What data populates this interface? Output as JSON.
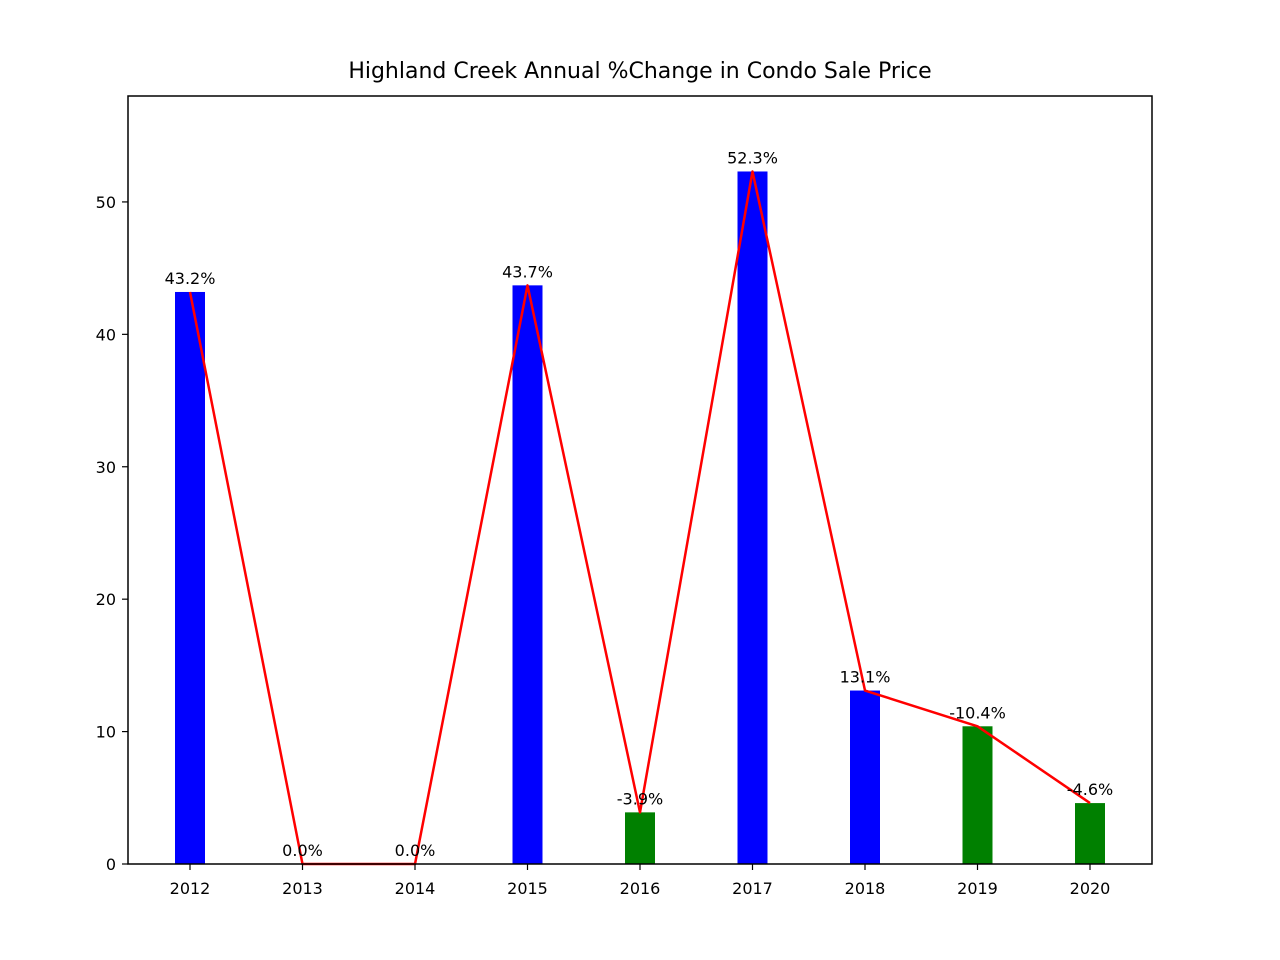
{
  "chart_data": {
    "type": "bar",
    "title": "Highland Creek Annual %Change in Condo Sale Price",
    "xlabel": "",
    "ylabel": "",
    "categories": [
      "2012",
      "2013",
      "2014",
      "2015",
      "2016",
      "2017",
      "2018",
      "2019",
      "2020"
    ],
    "values": [
      43.2,
      0.0,
      0.0,
      43.7,
      3.9,
      52.3,
      13.1,
      10.4,
      4.6
    ],
    "labels": [
      "43.2%",
      "0.0%",
      "0.0%",
      "43.7%",
      "-3.9%",
      "52.3%",
      "13.1%",
      "-10.4%",
      "-4.6%"
    ],
    "bar_colors": [
      "#0000ff",
      "#0000ff",
      "#0000ff",
      "#0000ff",
      "#008000",
      "#0000ff",
      "#0000ff",
      "#008000",
      "#008000"
    ],
    "line": {
      "values": [
        43.2,
        0.0,
        0.0,
        43.7,
        3.9,
        52.3,
        13.1,
        10.4,
        4.6
      ],
      "color": "#ff0000"
    },
    "ylim": [
      0,
      58
    ],
    "yticks": [
      0,
      10,
      20,
      30,
      40,
      50
    ],
    "grid": false,
    "legend": "none"
  }
}
